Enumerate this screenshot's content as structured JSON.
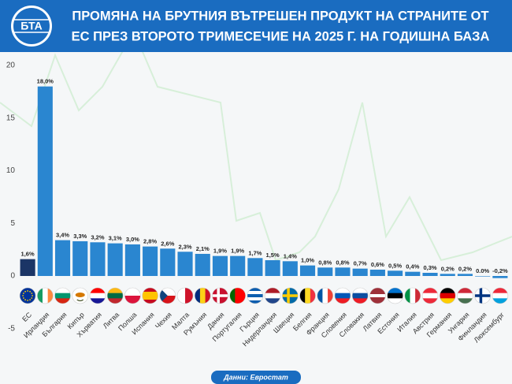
{
  "chart_data": {
    "type": "bar",
    "title_lines": [
      "ПРОМЯНА НА БРУТНИЯ ВЪТРЕШЕН ПРОДУКТ НА СТРАНИТЕ ОТ",
      "ЕС ПРЕЗ ВТОРОТО ТРИМЕСЕЧИЕ НА 2025 Г. НА ГОДИШНА БАЗА"
    ],
    "logo": "БТА",
    "source": "Данни: Евростат",
    "categories": [
      "ЕС",
      "Ирландия",
      "България",
      "Кипър",
      "Хърватия",
      "Литва",
      "Полша",
      "Испания",
      "Чехия",
      "Малта",
      "Румъния",
      "Дания",
      "Португалия",
      "Гърция",
      "Нидерландия",
      "Швеция",
      "Белгия",
      "Франция",
      "Словения",
      "Словакия",
      "Латвия",
      "Естония",
      "Италия",
      "Австрия",
      "Германия",
      "Унгария",
      "Финландия",
      "Люксембург"
    ],
    "values": [
      1.6,
      18.0,
      3.4,
      3.3,
      3.2,
      3.1,
      3.0,
      2.8,
      2.6,
      2.3,
      2.1,
      1.9,
      1.9,
      1.7,
      1.5,
      1.4,
      1.0,
      0.8,
      0.8,
      0.7,
      0.6,
      0.5,
      0.4,
      0.3,
      0.2,
      0.2,
      0.0,
      -0.2
    ],
    "value_labels": [
      "1,6%",
      "18,0%",
      "3,4%",
      "3,3%",
      "3,2%",
      "3,1%",
      "3,0%",
      "2,8%",
      "2,6%",
      "2,3%",
      "2,1%",
      "1,9%",
      "1,9%",
      "1,7%",
      "1,5%",
      "1,4%",
      "1,0%",
      "0,8%",
      "0,8%",
      "0,7%",
      "0,6%",
      "0,5%",
      "0,4%",
      "0,3%",
      "0,2%",
      "0,2%",
      "0.0%",
      "-0,2%"
    ],
    "colors": [
      "#1b3566",
      "#2a86d0",
      "#2a86d0",
      "#2a86d0",
      "#2a86d0",
      "#2a86d0",
      "#2a86d0",
      "#2a86d0",
      "#2a86d0",
      "#2a86d0",
      "#2a86d0",
      "#2a86d0",
      "#2a86d0",
      "#2a86d0",
      "#2a86d0",
      "#2a86d0",
      "#2a86d0",
      "#2a86d0",
      "#2a86d0",
      "#2a86d0",
      "#2a86d0",
      "#2a86d0",
      "#2a86d0",
      "#2a86d0",
      "#2a86d0",
      "#2a86d0",
      "#2a86d0",
      "#2a86d0"
    ],
    "ylim": [
      -6.5,
      21
    ],
    "yticks": [
      -5,
      0,
      5,
      10,
      15,
      20
    ],
    "grid": false
  }
}
